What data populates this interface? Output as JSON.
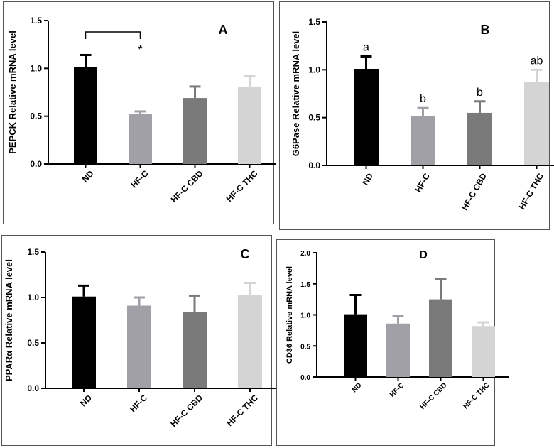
{
  "chart_data": [
    {
      "panel": "A",
      "type": "bar",
      "ylabel": "PEPCK Relative mRNA level",
      "categories": [
        "ND",
        "HF-C",
        "HF-C CBD",
        "HF-C THC"
      ],
      "values": [
        1.01,
        0.52,
        0.69,
        0.81
      ],
      "errors": [
        0.13,
        0.03,
        0.12,
        0.11
      ],
      "colors": [
        "#000000",
        "#a0a0a6",
        "#7a7a7a",
        "#d4d4d4"
      ],
      "ylim": [
        0,
        1.5
      ],
      "yticks": [
        "0.0",
        "0.5",
        "1.0",
        "1.5"
      ],
      "annotations": [
        "",
        "",
        "",
        ""
      ],
      "significance": {
        "from": 0,
        "to": 1,
        "label": "*"
      }
    },
    {
      "panel": "B",
      "type": "bar",
      "ylabel": "G6Pase Relative mRNA level",
      "categories": [
        "ND",
        "HF-C",
        "HF-C CBD",
        "HF-C THC"
      ],
      "values": [
        1.01,
        0.52,
        0.55,
        0.87
      ],
      "errors": [
        0.13,
        0.08,
        0.12,
        0.13
      ],
      "colors": [
        "#000000",
        "#a0a0a6",
        "#7a7a7a",
        "#d4d4d4"
      ],
      "ylim": [
        0,
        1.5
      ],
      "yticks": [
        "0.0",
        "0.5",
        "1.0",
        "1.5"
      ],
      "annotations": [
        "a",
        "b",
        "b",
        "ab"
      ]
    },
    {
      "panel": "C",
      "type": "bar",
      "ylabel": "PPARα Relative mRNA level",
      "categories": [
        "ND",
        "HF-C",
        "HF-C CBD",
        "HF-C THC"
      ],
      "values": [
        1.01,
        0.91,
        0.84,
        1.03
      ],
      "errors": [
        0.12,
        0.09,
        0.18,
        0.13
      ],
      "colors": [
        "#000000",
        "#a0a0a6",
        "#7a7a7a",
        "#d4d4d4"
      ],
      "ylim": [
        0,
        1.5
      ],
      "yticks": [
        "0.0",
        "0.5",
        "1.0",
        "1.5"
      ],
      "annotations": [
        "",
        "",
        "",
        ""
      ]
    },
    {
      "panel": "D",
      "type": "bar",
      "ylabel": "CD36 Relative mRNA level",
      "categories": [
        "ND",
        "HF-C",
        "HF-C CBD",
        "HF-C THC"
      ],
      "values": [
        1.01,
        0.86,
        1.25,
        0.82
      ],
      "errors": [
        0.31,
        0.12,
        0.33,
        0.06
      ],
      "colors": [
        "#000000",
        "#a0a0a6",
        "#7a7a7a",
        "#d4d4d4"
      ],
      "ylim": [
        0,
        2.0
      ],
      "yticks": [
        "0.0",
        "0.5",
        "1.0",
        "1.5",
        "2.0"
      ],
      "annotations": [
        "",
        "",
        "",
        ""
      ]
    }
  ]
}
